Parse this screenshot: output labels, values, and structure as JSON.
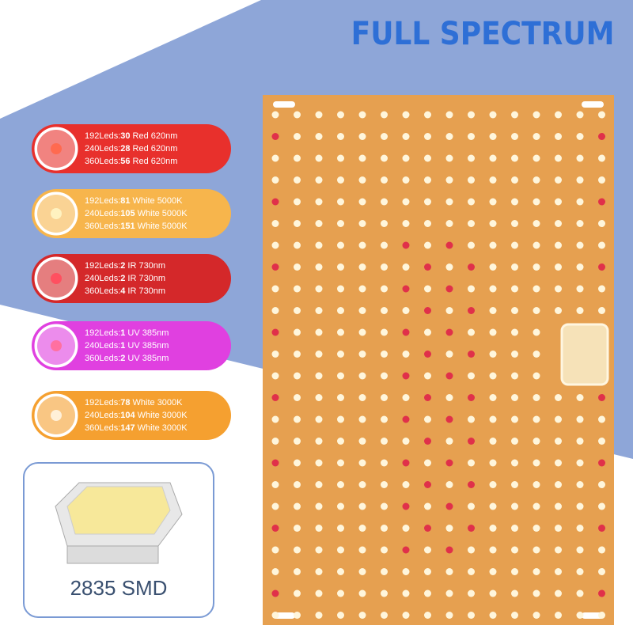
{
  "title": "FULL SPECTRUM",
  "specs": [
    {
      "lines": [
        {
          "prefix": "192Leds:",
          "count": "30",
          "spec": "Red 620nm"
        },
        {
          "prefix": "240Leds:",
          "count": "28",
          "spec": "Red 620nm"
        },
        {
          "prefix": "360Leds:",
          "count": "56",
          "spec": "Red 620nm"
        }
      ]
    },
    {
      "lines": [
        {
          "prefix": "192Leds:",
          "count": "81",
          "spec": "White 5000K"
        },
        {
          "prefix": "240Leds:",
          "count": "105",
          "spec": "White 5000K"
        },
        {
          "prefix": "360Leds:",
          "count": "151",
          "spec": "White 5000K"
        }
      ]
    },
    {
      "lines": [
        {
          "prefix": "192Leds:",
          "count": "2",
          "spec": "IR 730nm"
        },
        {
          "prefix": "240Leds:",
          "count": "2",
          "spec": "IR 730nm"
        },
        {
          "prefix": "360Leds:",
          "count": "4",
          "spec": "IR 730nm"
        }
      ]
    },
    {
      "lines": [
        {
          "prefix": "192Leds:",
          "count": "1",
          "spec": "UV 385nm"
        },
        {
          "prefix": "240Leds:",
          "count": "1",
          "spec": "UV 385nm"
        },
        {
          "prefix": "360Leds:",
          "count": "2",
          "spec": "UV 385nm"
        }
      ]
    },
    {
      "lines": [
        {
          "prefix": "192Leds:",
          "count": "78",
          "spec": "White 3000K"
        },
        {
          "prefix": "240Leds:",
          "count": "104",
          "spec": "White 3000K"
        },
        {
          "prefix": "360Leds:",
          "count": "147",
          "spec": "White 3000K"
        }
      ]
    }
  ],
  "chip_label": "2835 SMD"
}
